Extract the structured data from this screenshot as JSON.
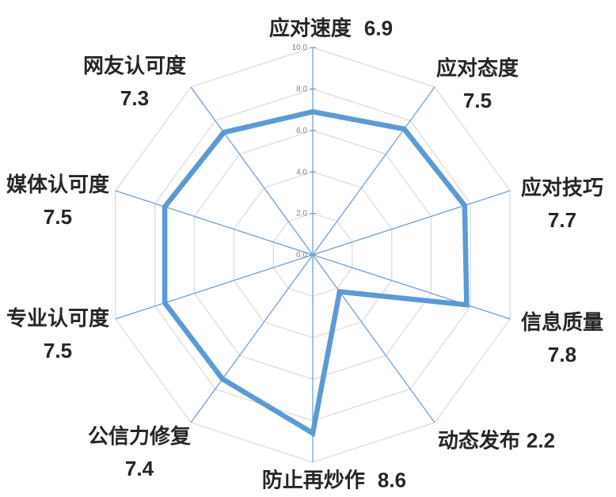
{
  "chart_data": {
    "type": "radar",
    "title": "",
    "categories": [
      "应对速度",
      "应对态度",
      "应对技巧",
      "信息质量",
      "动态发布",
      "防止再炒作",
      "公信力修复",
      "专业认可度",
      "媒体认可度",
      "网友认可度"
    ],
    "values": [
      6.9,
      7.5,
      7.7,
      7.8,
      2.2,
      8.6,
      7.4,
      7.5,
      7.5,
      7.3
    ],
    "value_labels": [
      "6.9",
      "7.5",
      "7.7",
      "7.8",
      "2.2",
      "8.6",
      "7.4",
      "7.5",
      "7.5",
      "7.3"
    ],
    "axis": {
      "min": 0,
      "max": 10,
      "step": 2,
      "tick_labels": [
        "0.0",
        "2.0",
        "4.0",
        "6.0",
        "8.0",
        "10.0"
      ]
    },
    "grid": true,
    "legend": "none",
    "colors": {
      "series_line": "#5B9BD5",
      "spoke": "#6FA0D8",
      "ring": "#D9D9D9",
      "tick_label": "#808080",
      "category_label": "#262626",
      "background": "#FFFFFF"
    }
  }
}
